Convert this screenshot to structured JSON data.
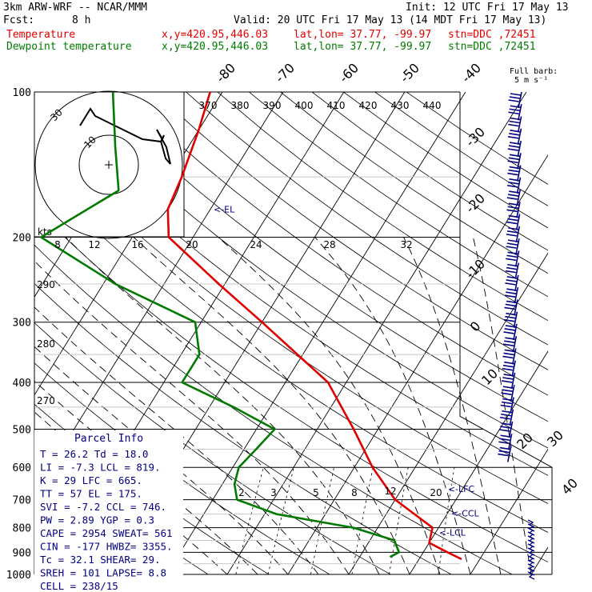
{
  "header": {
    "model": "3km ARW-WRF -- NCAR/MMM",
    "init": "Init: 12 UTC Fri 17 May 13",
    "fcst_label": "Fcst:",
    "fcst_value": "8 h",
    "valid": "Valid: 20 UTC Fri 17 May 13 (14 MDT Fri 17 May 13)",
    "temp_label": "Temperature",
    "dew_label": "Dewpoint temperature",
    "xy": "x,y=420.95,446.03",
    "latlon": "lat,lon= 37.77, -99.97",
    "stn": "stn=DDC ,72451",
    "full_barb": "Full barb:",
    "full_barb_value": "5 m s⁻¹"
  },
  "chart_data": {
    "type": "skew-t",
    "pressure_levels": [
      100,
      200,
      300,
      400,
      500,
      600,
      700,
      800,
      900,
      1000
    ],
    "skewed_isotherm_labels": [
      "-80",
      "-70",
      "-60",
      "-50",
      "-40",
      "-30",
      "-20",
      "-10",
      "0",
      "10",
      "20",
      "30",
      "40"
    ],
    "theta_labels": [
      "370",
      "380",
      "390",
      "400",
      "410",
      "420",
      "430",
      "440"
    ],
    "dry_adiabat_labels": [
      "290",
      "280",
      "270"
    ],
    "mixing_ratio_labels": [
      "2",
      "3",
      "5",
      "8",
      "12",
      "20"
    ],
    "hodograph_speed_labels": [
      "8",
      "12",
      "16",
      "20",
      "24",
      "28",
      "32"
    ],
    "hodograph_units": "kts",
    "hodograph_ring_labels": [
      "10",
      "30"
    ],
    "temperature": {
      "name": "Temperature",
      "color": "#e00000",
      "points": [
        {
          "p": 930,
          "t": 27
        },
        {
          "p": 900,
          "t": 24
        },
        {
          "p": 860,
          "t": 20
        },
        {
          "p": 800,
          "t": 19
        },
        {
          "p": 700,
          "t": 10
        },
        {
          "p": 600,
          "t": 3
        },
        {
          "p": 500,
          "t": -4
        },
        {
          "p": 400,
          "t": -13
        },
        {
          "p": 300,
          "t": -30
        },
        {
          "p": 250,
          "t": -41
        },
        {
          "p": 200,
          "t": -54
        },
        {
          "p": 175,
          "t": -57
        },
        {
          "p": 150,
          "t": -58
        },
        {
          "p": 120,
          "t": -60
        },
        {
          "p": 100,
          "t": -62
        }
      ]
    },
    "dewpoint": {
      "name": "Dewpoint temperature",
      "color": "#007a00",
      "points": [
        {
          "p": 920,
          "t": 15
        },
        {
          "p": 900,
          "t": 16
        },
        {
          "p": 850,
          "t": 14
        },
        {
          "p": 800,
          "t": 6
        },
        {
          "p": 750,
          "t": -8
        },
        {
          "p": 700,
          "t": -16
        },
        {
          "p": 650,
          "t": -18
        },
        {
          "p": 600,
          "t": -19
        },
        {
          "p": 550,
          "t": -18
        },
        {
          "p": 500,
          "t": -17
        },
        {
          "p": 450,
          "t": -26
        },
        {
          "p": 400,
          "t": -37
        },
        {
          "p": 350,
          "t": -37
        },
        {
          "p": 300,
          "t": -41
        },
        {
          "p": 250,
          "t": -58
        },
        {
          "p": 200,
          "t": -75
        },
        {
          "p": 160,
          "t": -67
        },
        {
          "p": 130,
          "t": -72
        },
        {
          "p": 100,
          "t": -78
        }
      ]
    },
    "levels_marked": [
      {
        "label": "<-EL",
        "p": 175
      },
      {
        "label": "<-LFC",
        "p": 665
      },
      {
        "label": "<-CCL",
        "p": 746
      },
      {
        "label": "<-LCL",
        "p": 819
      }
    ]
  },
  "parcel_info": {
    "title": "Parcel Info",
    "rows": [
      "T   =   26.2  Td =  18.0",
      "LI  =   -7.3  LCL =  819.",
      "K   =     29  LFC =  665.",
      "TT  =     57  EL  =  175.",
      "SVI =   -7.2  CCL =  746.",
      "PW  =   2.89  YGP =   0.3",
      "CAPE =  2954  SWEAT=  561",
      "CIN  =  -177  HWBZ= 3355.",
      "Tc   =  32.1  SHEAR=  29.",
      "SREH =   101  LAPSE=  8.8",
      "CELL = 238/15"
    ]
  }
}
